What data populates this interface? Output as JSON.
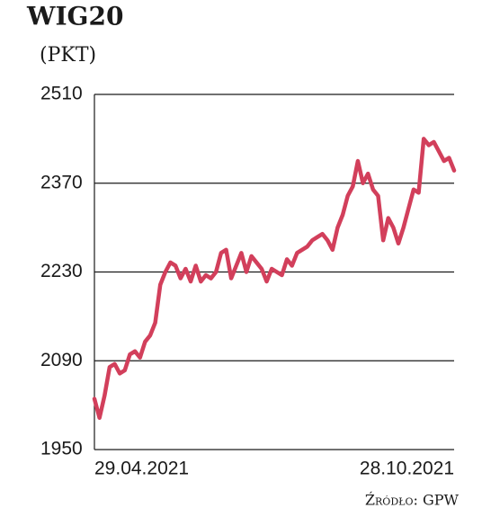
{
  "chart_data": {
    "type": "line",
    "title": "WIG20",
    "subtitle": "(PKT)",
    "source": "Źródło: GPW",
    "categories": [
      "29.04.2021",
      null,
      null,
      null,
      null,
      null,
      null,
      null,
      null,
      null,
      null,
      null,
      null,
      null,
      null,
      null,
      null,
      null,
      null,
      null,
      null,
      null,
      null,
      null,
      null,
      null,
      null,
      null,
      null,
      null,
      null,
      null,
      null,
      null,
      null,
      null,
      null,
      null,
      null,
      null,
      null,
      null,
      null,
      null,
      null,
      null,
      null,
      null,
      null,
      null,
      null,
      null,
      null,
      null,
      null,
      null,
      null,
      null,
      null,
      null,
      null,
      null,
      null,
      null,
      null,
      null,
      null,
      null,
      null,
      null,
      null,
      "28.10.2021"
    ],
    "series": [
      {
        "name": "WIG20",
        "color": "#d23f5b",
        "values": [
          2030,
          2000,
          2035,
          2080,
          2085,
          2070,
          2075,
          2100,
          2105,
          2095,
          2120,
          2130,
          2150,
          2210,
          2230,
          2245,
          2240,
          2220,
          2235,
          2215,
          2240,
          2215,
          2225,
          2220,
          2230,
          2260,
          2265,
          2220,
          2240,
          2260,
          2230,
          2255,
          2245,
          2235,
          2215,
          2235,
          2230,
          2225,
          2250,
          2240,
          2260,
          2265,
          2270,
          2280,
          2285,
          2290,
          2280,
          2265,
          2300,
          2320,
          2350,
          2365,
          2405,
          2370,
          2385,
          2360,
          2350,
          2280,
          2315,
          2300,
          2275,
          2300,
          2330,
          2360,
          2355,
          2440,
          2430,
          2435,
          2420,
          2405,
          2410,
          2390
        ]
      }
    ],
    "ylim": [
      1950,
      2510
    ],
    "yticks": [
      1950,
      2090,
      2230,
      2370,
      2510
    ],
    "grid": true
  }
}
